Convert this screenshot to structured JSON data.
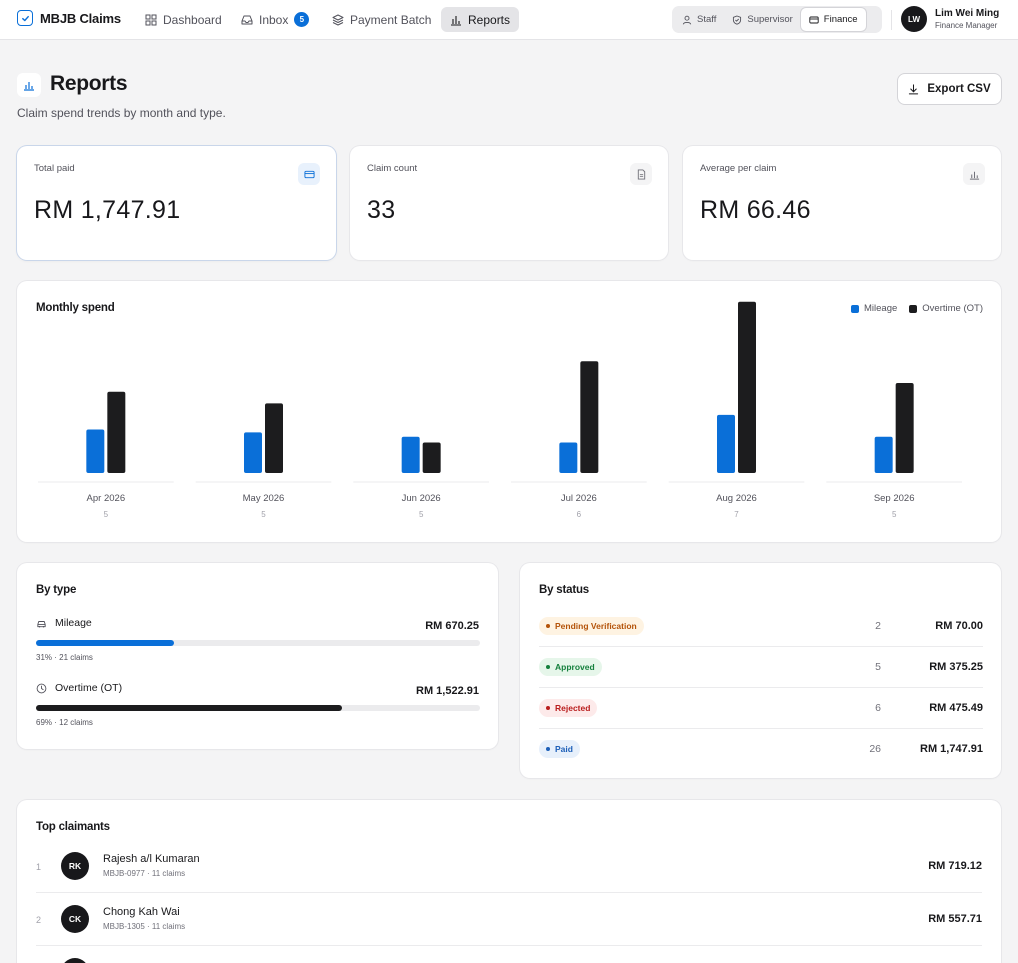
{
  "app": {
    "name": "MBJB Claims"
  },
  "nav": {
    "dashboard": "Dashboard",
    "inbox": "Inbox",
    "inbox_count": "5",
    "payment_batch": "Payment Batch",
    "reports": "Reports"
  },
  "roles": {
    "staff": "Staff",
    "supervisor": "Supervisor",
    "finance": "Finance"
  },
  "user": {
    "initials": "LW",
    "name": "Lim Wei Ming",
    "role": "Finance Manager"
  },
  "header": {
    "title": "Reports",
    "subtitle": "Claim spend trends by month and type.",
    "export_label": "Export CSV"
  },
  "kpis": [
    {
      "label": "Total paid",
      "value": "RM 1,747.91",
      "icon": "card-icon"
    },
    {
      "label": "Claim count",
      "value": "33",
      "icon": "document-icon"
    },
    {
      "label": "Average per claim",
      "value": "RM 66.46",
      "icon": "bar-chart-icon"
    }
  ],
  "chart_data": {
    "type": "bar",
    "title": "Monthly spend",
    "categories": [
      "Apr 2026",
      "May 2026",
      "Jun 2026",
      "Jul 2026",
      "Aug 2026",
      "Sep 2026"
    ],
    "counts": [
      "5",
      "5",
      "5",
      "6",
      "7",
      "5"
    ],
    "series": [
      {
        "name": "Mileage",
        "color": "#0a6fd8",
        "values": [
          150,
          140,
          125,
          105,
          200,
          125
        ]
      },
      {
        "name": "Overtime (OT)",
        "color": "#1c1c1e",
        "values": [
          280,
          240,
          105,
          385,
          590,
          310
        ]
      }
    ],
    "ylim": [
      0,
      620
    ],
    "legend_position": "top-right",
    "grid": false
  },
  "by_type": {
    "title": "By type",
    "items": [
      {
        "label": "Mileage",
        "amount": "RM 670.25",
        "meta": "31% · 21 claims",
        "share": 0.31,
        "color": "#0a6fd8",
        "icon": "car-icon"
      },
      {
        "label": "Overtime (OT)",
        "amount": "RM 1,522.91",
        "meta": "69% · 12 claims",
        "share": 0.69,
        "color": "#1c1c1e",
        "icon": "clock-icon"
      }
    ]
  },
  "by_status": {
    "title": "By status",
    "items": [
      {
        "label": "Pending Verification",
        "count": "2",
        "amount": "RM 70.00",
        "fg": "#b45309",
        "bg": "#fef3e2"
      },
      {
        "label": "Approved",
        "count": "5",
        "amount": "RM 375.25",
        "fg": "#15803d",
        "bg": "#e6f6ea"
      },
      {
        "label": "Rejected",
        "count": "6",
        "amount": "RM 475.49",
        "fg": "#b91c1c",
        "bg": "#fdeaea"
      },
      {
        "label": "Paid",
        "count": "26",
        "amount": "RM 1,747.91",
        "fg": "#1d5fb8",
        "bg": "#e7f0fb"
      }
    ]
  },
  "top_claimants": {
    "title": "Top claimants",
    "items": [
      {
        "rank": "1",
        "initials": "RK",
        "name": "Rajesh a/l Kumaran",
        "meta": "MBJB-0977 · 11 claims",
        "amount": "RM 719.12"
      },
      {
        "rank": "2",
        "initials": "CK",
        "name": "Chong Kah Wai",
        "meta": "MBJB-1305 · 11 claims",
        "amount": "RM 557.71"
      }
    ]
  }
}
